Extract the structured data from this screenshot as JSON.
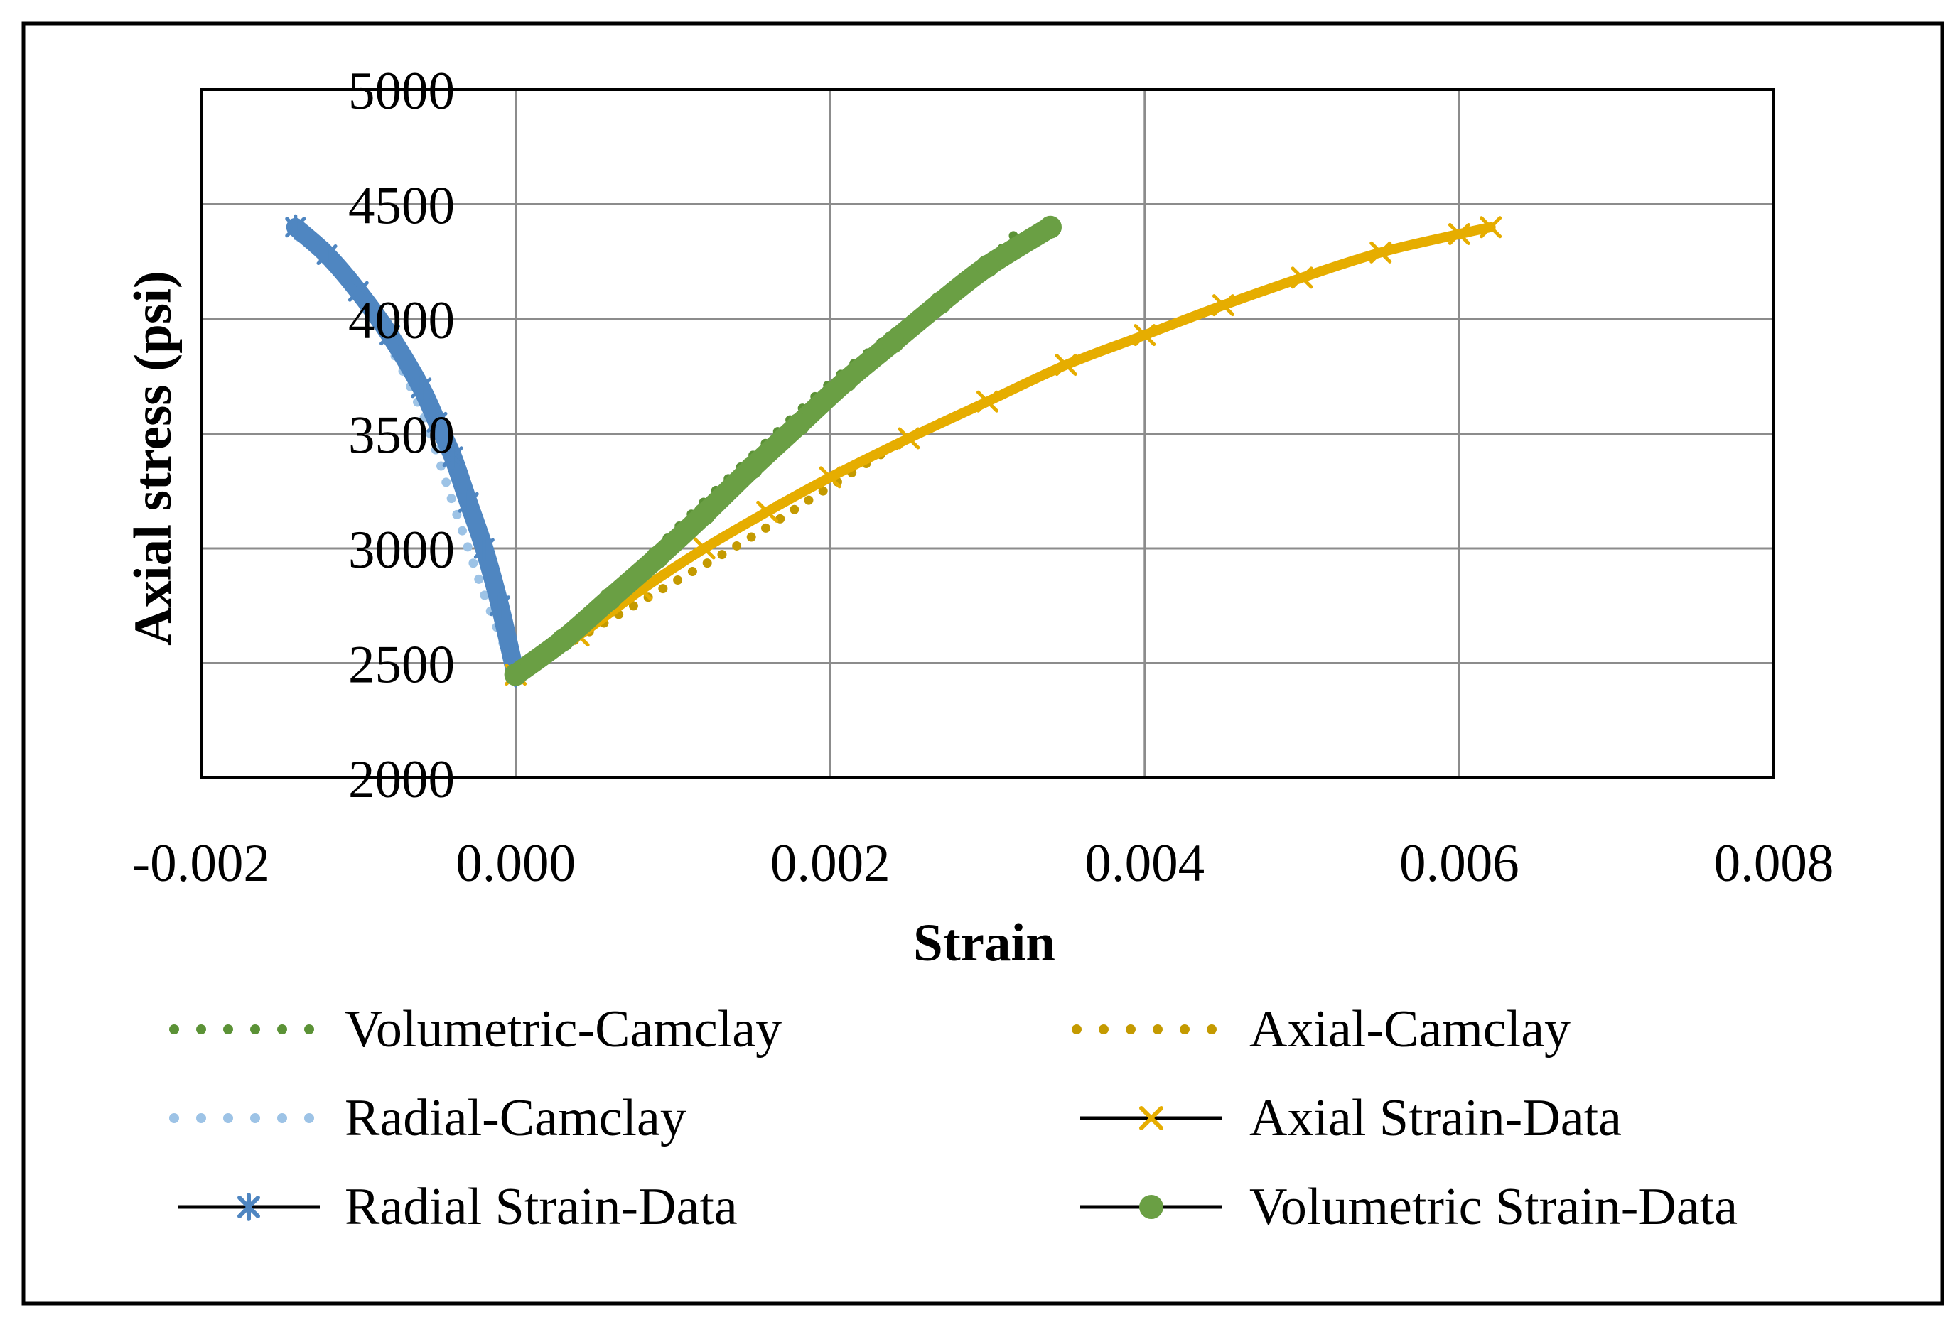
{
  "chart_data": {
    "type": "scatter",
    "title": "",
    "xlabel": "Strain",
    "ylabel": "Axial stress (psi)",
    "xlim": [
      -0.002,
      0.008
    ],
    "ylim": [
      2000,
      5000
    ],
    "x_ticks": [
      -0.002,
      0.0,
      0.002,
      0.004,
      0.006,
      0.008
    ],
    "x_tick_labels": [
      "-0.002",
      "0.000",
      "0.002",
      "0.004",
      "0.006",
      "0.008"
    ],
    "y_ticks": [
      2000,
      2500,
      3000,
      3500,
      4000,
      4500,
      5000
    ],
    "y_tick_labels": [
      "2000",
      "2500",
      "3000",
      "3500",
      "4000",
      "4500",
      "5000"
    ],
    "grid": true,
    "legend_position": "bottom",
    "series": [
      {
        "name": "Volumetric-Camclay",
        "style": "dotted",
        "color": "#5b9236",
        "points": [
          [
            0.0,
            2450
          ],
          [
            0.0005,
            2710
          ],
          [
            0.001,
            3070
          ],
          [
            0.0015,
            3400
          ],
          [
            0.002,
            3720
          ],
          [
            0.0025,
            3990
          ],
          [
            0.003,
            4250
          ],
          [
            0.0032,
            4390
          ]
        ]
      },
      {
        "name": "Axial-Camclay",
        "style": "dotted",
        "color": "#c49a00",
        "points": [
          [
            0.0,
            2450
          ],
          [
            0.0005,
            2650
          ],
          [
            0.001,
            2850
          ],
          [
            0.0015,
            3050
          ],
          [
            0.002,
            3270
          ],
          [
            0.0025,
            3480
          ],
          [
            0.003,
            3640
          ]
        ]
      },
      {
        "name": "Radial-Camclay",
        "style": "dotted",
        "color": "#9dc3e6",
        "points": [
          [
            0.0,
            2450
          ],
          [
            -0.0002,
            2800
          ],
          [
            -0.0004,
            3200
          ],
          [
            -0.0006,
            3600
          ],
          [
            -0.0009,
            4000
          ],
          [
            -0.0012,
            4250
          ],
          [
            -0.0014,
            4370
          ]
        ]
      },
      {
        "name": "Axial Strain-Data",
        "marker": "x",
        "color": "#e6ad00",
        "points": [
          [
            0.0,
            2450
          ],
          [
            0.0004,
            2620
          ],
          [
            0.0008,
            2820
          ],
          [
            0.0012,
            3000
          ],
          [
            0.0016,
            3160
          ],
          [
            0.002,
            3310
          ],
          [
            0.0025,
            3480
          ],
          [
            0.003,
            3640
          ],
          [
            0.0035,
            3800
          ],
          [
            0.004,
            3930
          ],
          [
            0.0045,
            4060
          ],
          [
            0.005,
            4180
          ],
          [
            0.0055,
            4290
          ],
          [
            0.006,
            4370
          ],
          [
            0.0062,
            4400
          ]
        ]
      },
      {
        "name": "Radial Strain-Data",
        "marker": "asterisk",
        "color": "#4f86c1",
        "points": [
          [
            0.0,
            2450
          ],
          [
            -0.0001,
            2750
          ],
          [
            -0.0002,
            3000
          ],
          [
            -0.0003,
            3200
          ],
          [
            -0.0004,
            3400
          ],
          [
            -0.0005,
            3550
          ],
          [
            -0.0006,
            3700
          ],
          [
            -0.0008,
            3930
          ],
          [
            -0.001,
            4120
          ],
          [
            -0.0012,
            4280
          ],
          [
            -0.0014,
            4400
          ]
        ]
      },
      {
        "name": "Volumetric Strain-Data",
        "marker": "circle",
        "color": "#6a9f44",
        "points": [
          [
            0.0,
            2450
          ],
          [
            0.0003,
            2600
          ],
          [
            0.0006,
            2780
          ],
          [
            0.0009,
            2960
          ],
          [
            0.0012,
            3150
          ],
          [
            0.0015,
            3350
          ],
          [
            0.0018,
            3540
          ],
          [
            0.0021,
            3730
          ],
          [
            0.0024,
            3900
          ],
          [
            0.0027,
            4070
          ],
          [
            0.003,
            4230
          ],
          [
            0.0034,
            4400
          ]
        ]
      }
    ]
  },
  "legend": {
    "items": [
      {
        "label": "Volumetric-Camclay"
      },
      {
        "label": "Axial-Camclay"
      },
      {
        "label": "Radial-Camclay"
      },
      {
        "label": "Axial Strain-Data"
      },
      {
        "label": "Radial Strain-Data"
      },
      {
        "label": "Volumetric Strain-Data"
      }
    ]
  }
}
